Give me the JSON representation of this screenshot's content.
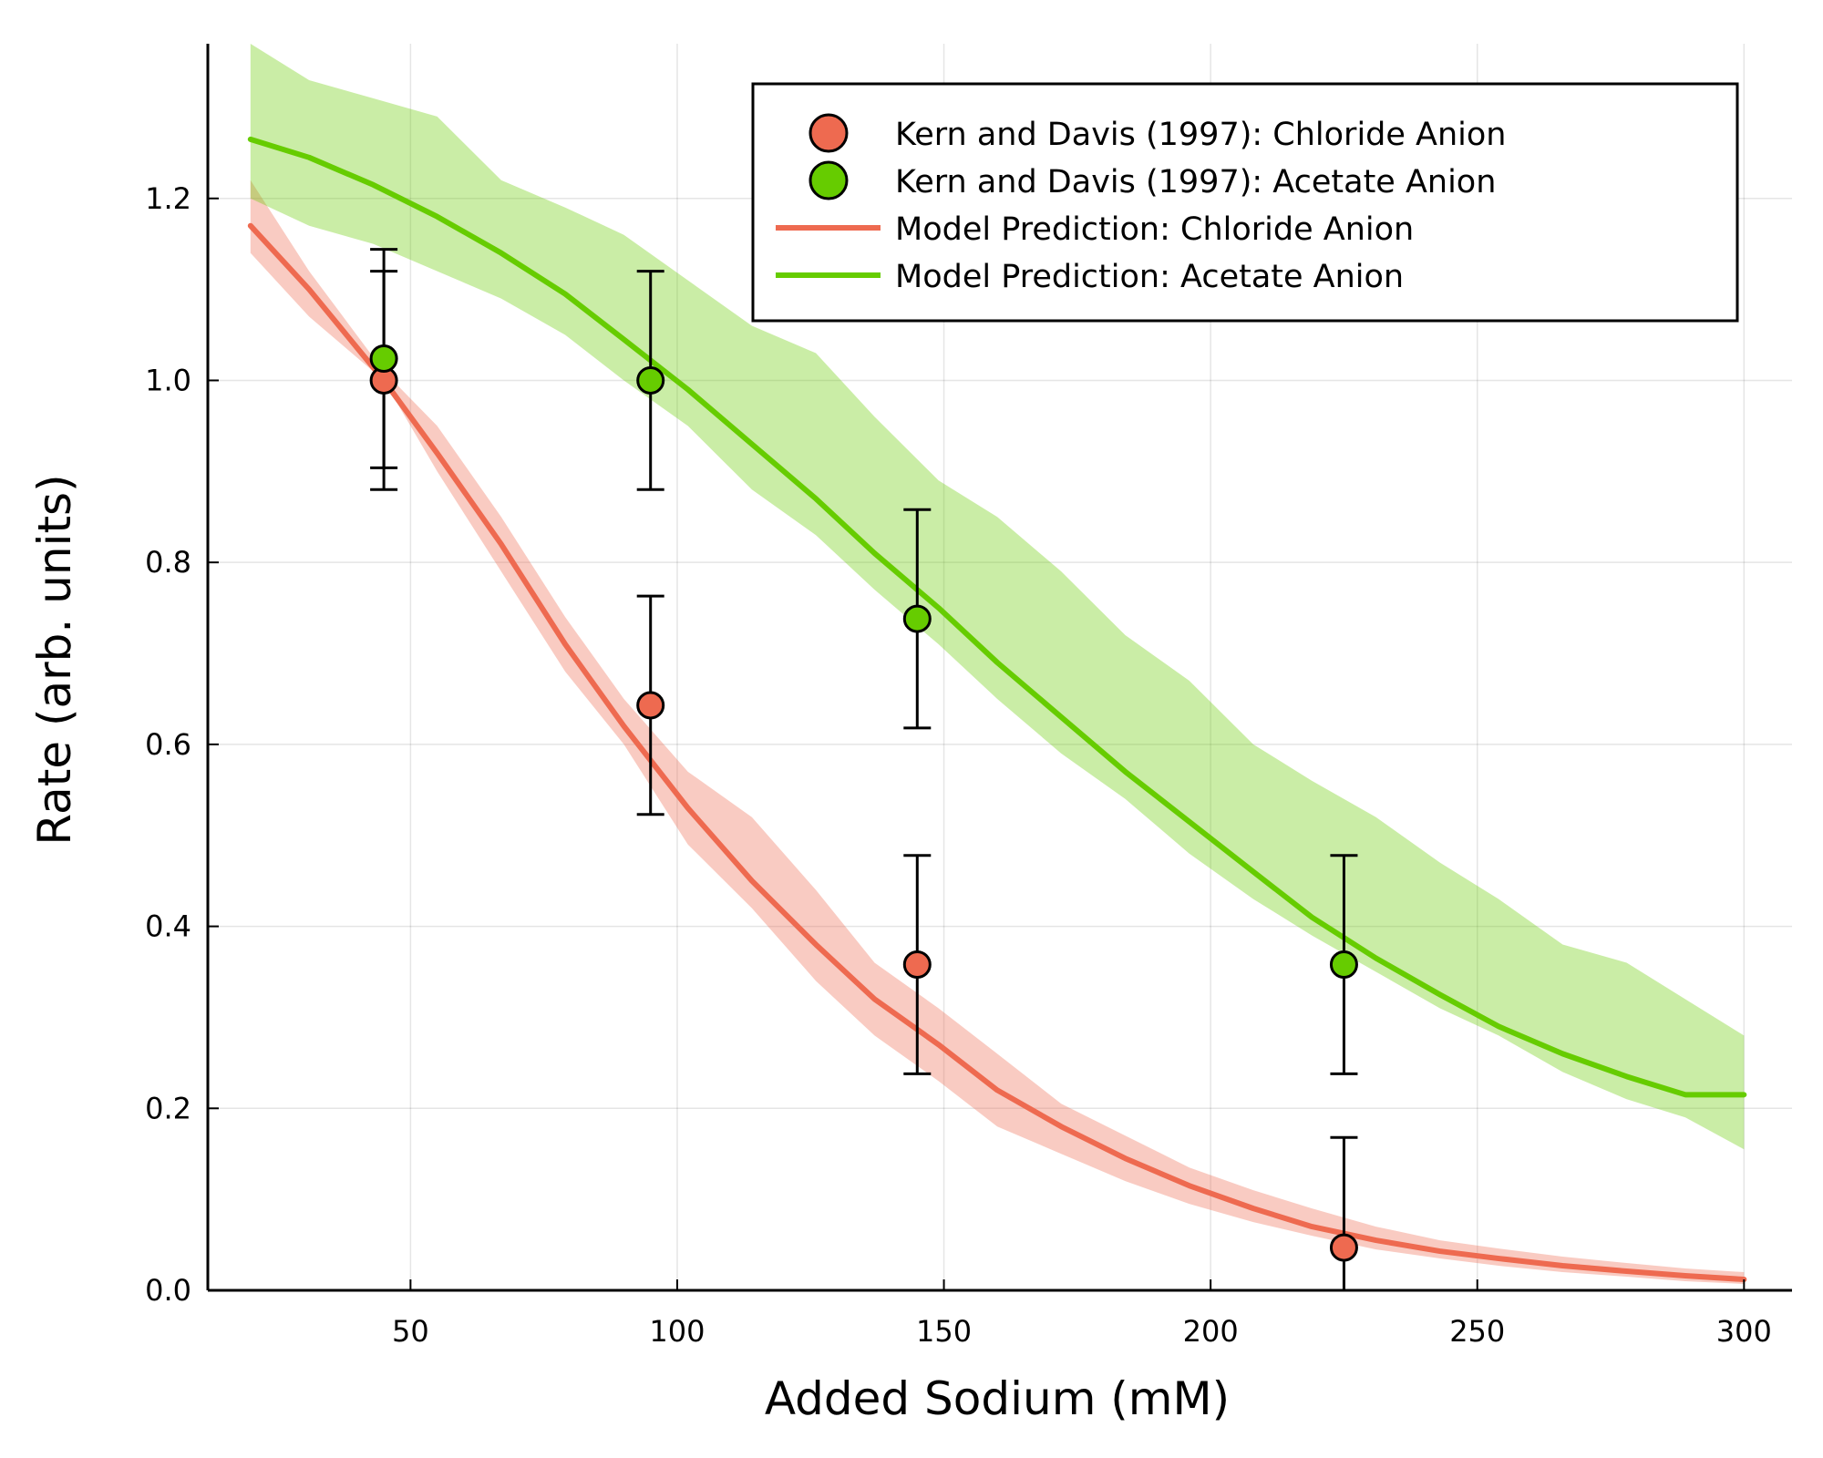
{
  "chart_data": {
    "type": "line",
    "xlabel": "Added Sodium (mM)",
    "ylabel": "Rate (arb. units)",
    "xlim": [
      12,
      309
    ],
    "ylim": [
      0.0,
      1.37
    ],
    "xticks": [
      50,
      100,
      150,
      200,
      250,
      300
    ],
    "xtick_labels": [
      "50",
      "100",
      "150",
      "200",
      "250",
      "300"
    ],
    "yticks": [
      0.0,
      0.2,
      0.4,
      0.6,
      0.8,
      1.0,
      1.2
    ],
    "ytick_labels": [
      "0.0",
      "0.2",
      "0.4",
      "0.6",
      "0.8",
      "1.0",
      "1.2"
    ],
    "grid": true,
    "legend_position": "top-right",
    "series": [
      {
        "name": "Kern and Davis (1997): Chloride Anion",
        "kind": "scatter",
        "color": "#EE6A50",
        "x": [
          45,
          95,
          145,
          225
        ],
        "y": [
          1.0,
          0.643,
          0.358,
          0.047
        ],
        "err_low": [
          0.88,
          0.523,
          0.238,
          0.0
        ],
        "err_high": [
          1.12,
          0.763,
          0.478,
          0.168
        ]
      },
      {
        "name": "Kern and Davis (1997): Acetate Anion",
        "kind": "scatter",
        "color": "#66CC00",
        "x": [
          45,
          95,
          145,
          225
        ],
        "y": [
          1.024,
          1.0,
          0.738,
          0.358
        ],
        "err_low": [
          0.904,
          0.88,
          0.618,
          0.238
        ],
        "err_high": [
          1.144,
          1.12,
          0.858,
          0.478
        ]
      },
      {
        "name": "Model Prediction: Chloride Anion",
        "kind": "line",
        "color": "#EE6A50",
        "x": [
          20,
          31,
          45,
          55,
          67,
          79,
          90,
          102,
          114,
          126,
          137,
          149,
          160,
          172,
          184,
          196,
          208,
          219,
          231,
          243,
          254,
          266,
          278,
          289,
          300
        ],
        "y": [
          1.17,
          1.1,
          1.0,
          0.92,
          0.82,
          0.71,
          0.62,
          0.53,
          0.45,
          0.38,
          0.32,
          0.27,
          0.22,
          0.18,
          0.145,
          0.115,
          0.09,
          0.07,
          0.055,
          0.043,
          0.035,
          0.027,
          0.021,
          0.016,
          0.012
        ],
        "band_low": [
          1.14,
          1.07,
          1.0,
          0.9,
          0.79,
          0.68,
          0.6,
          0.49,
          0.42,
          0.34,
          0.28,
          0.23,
          0.18,
          0.15,
          0.12,
          0.095,
          0.075,
          0.06,
          0.045,
          0.035,
          0.027,
          0.02,
          0.015,
          0.01,
          0.007
        ],
        "band_high": [
          1.22,
          1.12,
          1.01,
          0.95,
          0.85,
          0.74,
          0.65,
          0.57,
          0.52,
          0.44,
          0.36,
          0.31,
          0.26,
          0.205,
          0.17,
          0.135,
          0.11,
          0.09,
          0.07,
          0.055,
          0.046,
          0.037,
          0.03,
          0.024,
          0.02
        ]
      },
      {
        "name": "Model Prediction: Acetate Anion",
        "kind": "line",
        "color": "#66CC00",
        "x": [
          20,
          31,
          43,
          55,
          67,
          79,
          90,
          102,
          114,
          126,
          137,
          149,
          160,
          172,
          184,
          196,
          208,
          219,
          231,
          243,
          254,
          266,
          278,
          289,
          300
        ],
        "y": [
          1.265,
          1.245,
          1.215,
          1.18,
          1.14,
          1.095,
          1.045,
          0.99,
          0.93,
          0.87,
          0.81,
          0.75,
          0.69,
          0.63,
          0.57,
          0.515,
          0.46,
          0.41,
          0.365,
          0.325,
          0.29,
          0.26,
          0.235,
          0.215,
          0.215
        ],
        "band_low": [
          1.2,
          1.17,
          1.15,
          1.12,
          1.09,
          1.05,
          1.0,
          0.95,
          0.88,
          0.83,
          0.77,
          0.71,
          0.65,
          0.59,
          0.54,
          0.48,
          0.43,
          0.39,
          0.35,
          0.31,
          0.28,
          0.24,
          0.21,
          0.19,
          0.155
        ],
        "band_high": [
          1.37,
          1.33,
          1.31,
          1.29,
          1.22,
          1.19,
          1.16,
          1.11,
          1.06,
          1.03,
          0.96,
          0.89,
          0.85,
          0.79,
          0.72,
          0.67,
          0.6,
          0.56,
          0.52,
          0.47,
          0.43,
          0.38,
          0.36,
          0.32,
          0.28
        ]
      }
    ]
  }
}
